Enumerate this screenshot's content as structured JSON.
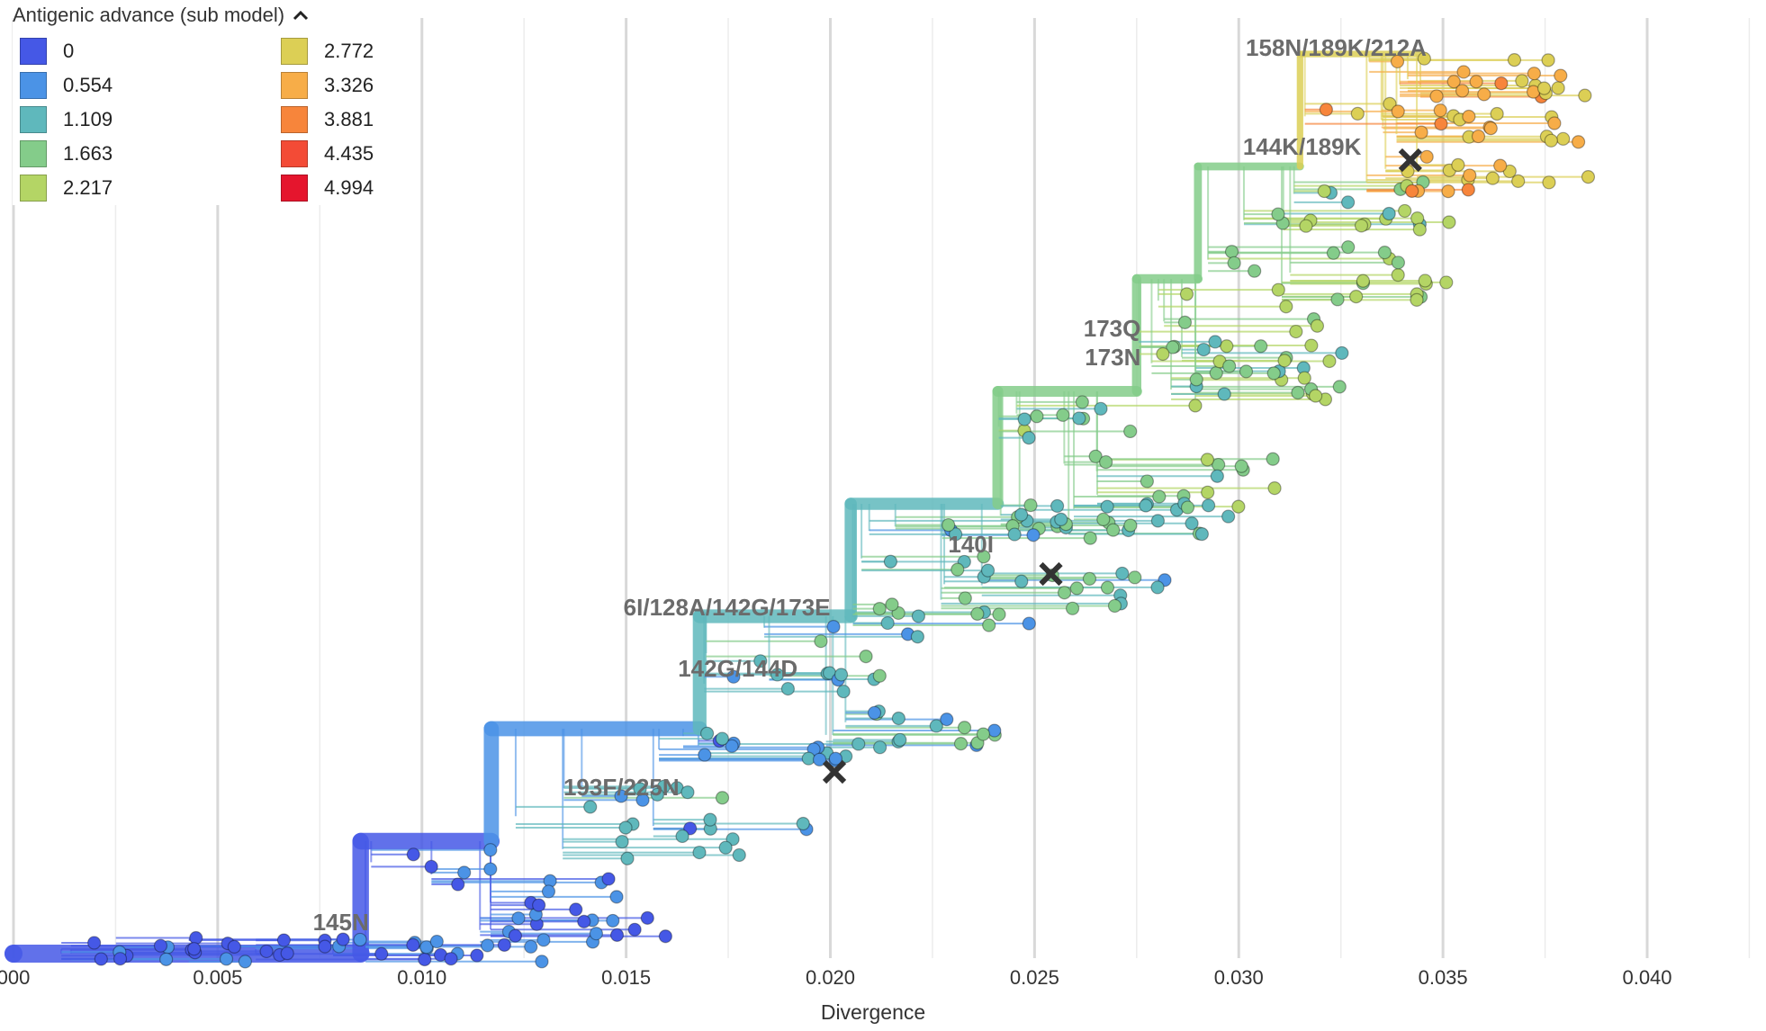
{
  "legend": {
    "title": "Antigenic advance (sub model)",
    "toggle_icon": "chevron-up-icon",
    "items": [
      {
        "label": "0",
        "color": "#4558e6"
      },
      {
        "label": "0.554",
        "color": "#4b93e6"
      },
      {
        "label": "1.109",
        "color": "#5fb8bc"
      },
      {
        "label": "1.663",
        "color": "#84cc8a"
      },
      {
        "label": "2.217",
        "color": "#b4d565"
      },
      {
        "label": "2.772",
        "color": "#dccf55"
      },
      {
        "label": "3.326",
        "color": "#f7ad48"
      },
      {
        "label": "3.881",
        "color": "#f7853b"
      },
      {
        "label": "4.435",
        "color": "#f34b36"
      },
      {
        "label": "4.994",
        "color": "#e5152d"
      }
    ]
  },
  "chart_data": {
    "type": "tree",
    "xlabel": "Divergence",
    "xlim": [
      0.0,
      0.043
    ],
    "x_ticks": [
      {
        "value": 0.0,
        "label": "000"
      },
      {
        "value": 0.005,
        "label": "0.005"
      },
      {
        "value": 0.01,
        "label": "0.010"
      },
      {
        "value": 0.015,
        "label": "0.015"
      },
      {
        "value": 0.02,
        "label": "0.020"
      },
      {
        "value": 0.025,
        "label": "0.025"
      },
      {
        "value": 0.03,
        "label": "0.030"
      },
      {
        "value": 0.035,
        "label": "0.035"
      },
      {
        "value": 0.04,
        "label": "0.040"
      }
    ],
    "grid": true,
    "color_by": "Antigenic advance (sub model)",
    "branch_labels": [
      {
        "text": "158N/189K/212A",
        "x": 0.0346
      },
      {
        "text": "144K/189K",
        "x": 0.033
      },
      {
        "text": "173Q",
        "x": 0.0276
      },
      {
        "text": "173N",
        "x": 0.0276
      },
      {
        "text": "140I",
        "x": 0.024
      },
      {
        "text": "6I/128A/142G/173E",
        "x": 0.02
      },
      {
        "text": "142G/144D",
        "x": 0.0192
      },
      {
        "text": "193F/225N",
        "x": 0.0163
      },
      {
        "text": "145N",
        "x": 0.0087
      }
    ],
    "markers": [
      {
        "x": 0.0342,
        "value": 3.9
      },
      {
        "x": 0.0254,
        "value": 1.6
      },
      {
        "x": 0.0201,
        "value": 0.9
      }
    ],
    "clades": [
      {
        "x0": 0.0,
        "x1": 0.0085,
        "v": 0.0
      },
      {
        "x0": 0.0085,
        "x1": 0.0117,
        "v": 0.1
      },
      {
        "x0": 0.0117,
        "x1": 0.0168,
        "v": 0.7
      },
      {
        "x0": 0.0168,
        "x1": 0.0205,
        "v": 1.0
      },
      {
        "x0": 0.0205,
        "x1": 0.0241,
        "v": 1.2
      },
      {
        "x0": 0.0241,
        "x1": 0.0275,
        "v": 1.4
      },
      {
        "x0": 0.0275,
        "x1": 0.029,
        "v": 1.6
      },
      {
        "x0": 0.029,
        "x1": 0.0315,
        "v": 1.8
      },
      {
        "x0": 0.0315,
        "x1": 0.0345,
        "v": 3.0
      }
    ]
  }
}
